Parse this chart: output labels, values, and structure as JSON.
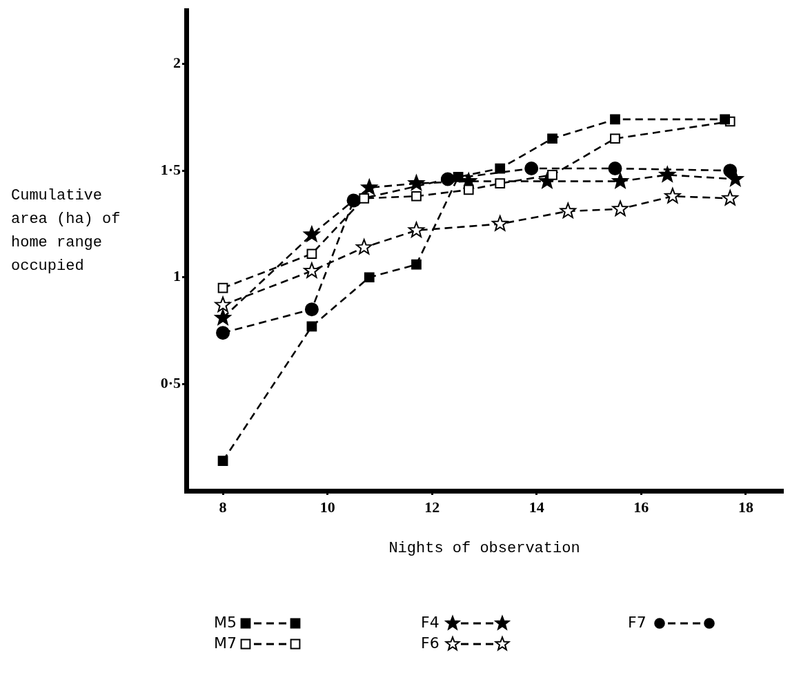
{
  "chart_data": {
    "type": "line",
    "xlabel": "Nights of observation",
    "ylabel": "Cumulative\narea (ha) of\nhome range\noccupied",
    "xlim": [
      7.3,
      18.7
    ],
    "xticks": [
      8,
      10,
      12,
      14,
      16,
      18
    ],
    "ylim": [
      0,
      2.25
    ],
    "yticks": [
      {
        "value": 0.5,
        "label": "0·5"
      },
      1,
      {
        "value": 1.5,
        "label": "1·5"
      },
      2
    ],
    "grid": false,
    "legend": "bottom",
    "line_style": "dashed",
    "series": [
      {
        "name": "M5",
        "color": "#000000",
        "marker": "square",
        "x": [
          8,
          9.7,
          10.8,
          11.7,
          12.5,
          13.3,
          14.3,
          15.5,
          17.6
        ],
        "values": [
          0.14,
          0.77,
          1.0,
          1.06,
          1.47,
          1.51,
          1.65,
          1.74,
          1.74
        ]
      },
      {
        "name": "M7",
        "color": "#000000",
        "marker": "square",
        "colors": [
          "#ffffff",
          "#ffffff",
          "#ffffff",
          "#ffffff",
          "#ffffff",
          "#ffffff",
          "#ffffff",
          "#ffffff",
          "#ffffff"
        ],
        "x": [
          8,
          9.7,
          10.7,
          11.7,
          12.7,
          13.3,
          14.3,
          15.5,
          17.7
        ],
        "values": [
          0.95,
          1.11,
          1.37,
          1.38,
          1.41,
          1.44,
          1.48,
          1.65,
          1.73
        ]
      },
      {
        "name": "F4",
        "color": "#000000",
        "marker": "star",
        "x": [
          8,
          9.7,
          10.8,
          11.7,
          12.7,
          14.2,
          15.6,
          16.5,
          17.8
        ],
        "values": [
          0.81,
          1.2,
          1.42,
          1.44,
          1.45,
          1.45,
          1.45,
          1.48,
          1.46
        ]
      },
      {
        "name": "F6",
        "color": "#000000",
        "marker": "star",
        "colors": [
          "#ffffff",
          "#ffffff",
          "#ffffff",
          "#ffffff",
          "#ffffff",
          "#ffffff",
          "#ffffff",
          "#ffffff",
          "#ffffff"
        ],
        "x": [
          8,
          9.7,
          10.7,
          11.7,
          13.3,
          14.6,
          15.6,
          16.6,
          17.7
        ],
        "values": [
          0.87,
          1.03,
          1.14,
          1.22,
          1.25,
          1.31,
          1.32,
          1.38,
          1.37
        ]
      },
      {
        "name": "F7",
        "color": "#000000",
        "marker": "circle",
        "x": [
          8,
          9.7,
          10.5,
          12.3,
          13.9,
          15.5,
          17.7
        ],
        "values": [
          0.74,
          0.85,
          1.36,
          1.46,
          1.51,
          1.51,
          1.5
        ]
      }
    ]
  }
}
